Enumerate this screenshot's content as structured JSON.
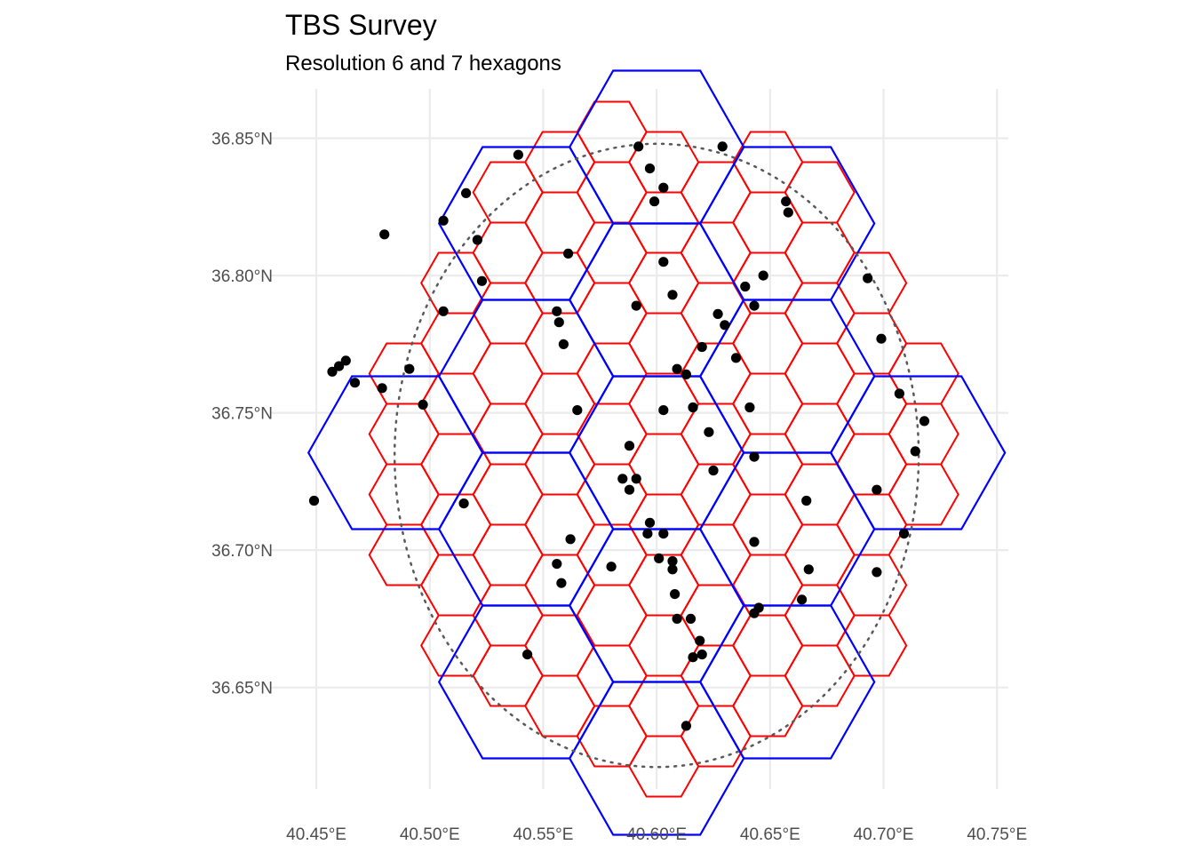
{
  "chart_data": {
    "type": "scatter",
    "title": "TBS Survey",
    "subtitle": "Resolution 6 and 7 hexagons",
    "x_ticks": [
      "40.45°E",
      "40.50°E",
      "40.55°E",
      "40.60°E",
      "40.65°E",
      "40.70°E",
      "40.75°E"
    ],
    "y_ticks": [
      "36.65°N",
      "36.70°N",
      "36.75°N",
      "36.80°N",
      "36.85°N"
    ],
    "xlim": [
      40.43,
      40.755
    ],
    "ylim": [
      36.613,
      36.868
    ],
    "grid": true,
    "layers": [
      {
        "name": "resolution-7-hexagons",
        "color": "#ff0000"
      },
      {
        "name": "resolution-6-hexagons",
        "color": "#0000ff"
      },
      {
        "name": "survey-boundary-circle",
        "color": "#595959",
        "style": "dotted",
        "center": [
          40.6,
          36.7345
        ],
        "radii_lon_lat": [
          0.1155,
          0.1135
        ]
      }
    ],
    "points_color": "#000000",
    "points": [
      [
        40.592,
        36.847
      ],
      [
        40.629,
        36.847
      ],
      [
        40.597,
        36.839
      ],
      [
        40.539,
        36.844
      ],
      [
        40.603,
        36.832
      ],
      [
        40.599,
        36.827
      ],
      [
        40.516,
        36.83
      ],
      [
        40.657,
        36.827
      ],
      [
        40.658,
        36.823
      ],
      [
        40.506,
        36.82
      ],
      [
        40.48,
        36.815
      ],
      [
        40.521,
        36.813
      ],
      [
        40.561,
        36.808
      ],
      [
        40.603,
        36.805
      ],
      [
        40.647,
        36.8
      ],
      [
        40.693,
        36.799
      ],
      [
        40.523,
        36.798
      ],
      [
        40.639,
        36.796
      ],
      [
        40.607,
        36.793
      ],
      [
        40.591,
        36.789
      ],
      [
        40.643,
        36.789
      ],
      [
        40.556,
        36.787
      ],
      [
        40.506,
        36.787
      ],
      [
        40.627,
        36.786
      ],
      [
        40.557,
        36.783
      ],
      [
        40.63,
        36.782
      ],
      [
        40.699,
        36.777
      ],
      [
        40.559,
        36.775
      ],
      [
        40.62,
        36.774
      ],
      [
        40.635,
        36.77
      ],
      [
        40.463,
        36.769
      ],
      [
        40.46,
        36.767
      ],
      [
        40.457,
        36.765
      ],
      [
        40.491,
        36.766
      ],
      [
        40.609,
        36.766
      ],
      [
        40.613,
        36.764
      ],
      [
        40.467,
        36.761
      ],
      [
        40.479,
        36.759
      ],
      [
        40.707,
        36.757
      ],
      [
        40.497,
        36.753
      ],
      [
        40.641,
        36.752
      ],
      [
        40.616,
        36.752
      ],
      [
        40.565,
        36.751
      ],
      [
        40.603,
        36.751
      ],
      [
        40.718,
        36.747
      ],
      [
        40.623,
        36.743
      ],
      [
        40.588,
        36.738
      ],
      [
        40.714,
        36.736
      ],
      [
        40.643,
        36.734
      ],
      [
        40.625,
        36.729
      ],
      [
        40.585,
        36.726
      ],
      [
        40.591,
        36.726
      ],
      [
        40.588,
        36.722
      ],
      [
        40.697,
        36.722
      ],
      [
        40.449,
        36.718
      ],
      [
        40.666,
        36.718
      ],
      [
        40.515,
        36.717
      ],
      [
        40.597,
        36.71
      ],
      [
        40.596,
        36.706
      ],
      [
        40.603,
        36.706
      ],
      [
        40.709,
        36.706
      ],
      [
        40.562,
        36.704
      ],
      [
        40.643,
        36.703
      ],
      [
        40.601,
        36.697
      ],
      [
        40.607,
        36.696
      ],
      [
        40.556,
        36.695
      ],
      [
        40.58,
        36.694
      ],
      [
        40.607,
        36.693
      ],
      [
        40.667,
        36.693
      ],
      [
        40.697,
        36.692
      ],
      [
        40.558,
        36.688
      ],
      [
        40.608,
        36.684
      ],
      [
        40.664,
        36.682
      ],
      [
        40.645,
        36.679
      ],
      [
        40.643,
        36.677
      ],
      [
        40.609,
        36.675
      ],
      [
        40.615,
        36.675
      ],
      [
        40.619,
        36.667
      ],
      [
        40.543,
        36.662
      ],
      [
        40.616,
        36.661
      ],
      [
        40.62,
        36.662
      ],
      [
        40.613,
        36.636
      ]
    ]
  }
}
